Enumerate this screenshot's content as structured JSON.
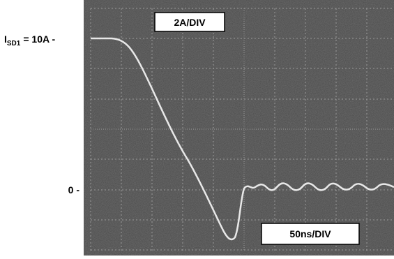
{
  "axis_labels": {
    "top": {
      "symbol": "I",
      "subscript": "SD1",
      "text": "= 10A -"
    },
    "zero": "0 -"
  },
  "scale": {
    "vertical": "2A/DIV",
    "horizontal": "50ns/DIV"
  }
}
